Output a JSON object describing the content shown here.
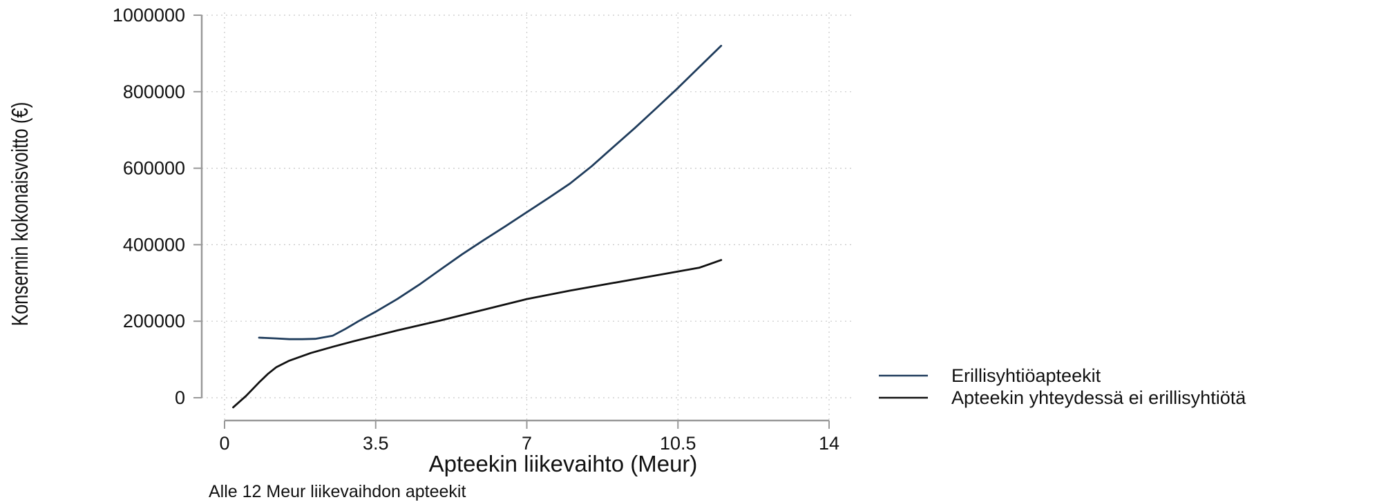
{
  "chart_data": {
    "type": "line",
    "title": "",
    "xlabel": "Apteekin liikevaihto (Meur)",
    "ylabel": "Konsernin kokonaisvoitto (€)",
    "note": "Alle 12 Meur liikevaihdon apteekit",
    "xlim": [
      0,
      14
    ],
    "ylim": [
      0,
      1000000
    ],
    "x_ticks": [
      0,
      3.5,
      7,
      10.5,
      14
    ],
    "x_tick_labels": [
      "0",
      "3.5",
      "7",
      "10.5",
      "14"
    ],
    "y_ticks": [
      0,
      200000,
      400000,
      600000,
      800000,
      1000000
    ],
    "y_tick_labels": [
      "0",
      "200000",
      "400000",
      "600000",
      "800000",
      "1000000"
    ],
    "grid": true,
    "legend_position": "right",
    "series": [
      {
        "name": "Erillisyhtiöapteekit",
        "color": "#1f3c5c",
        "x": [
          0.8,
          1.2,
          1.5,
          1.8,
          2.1,
          2.5,
          2.8,
          3.1,
          3.5,
          4.0,
          4.5,
          5.0,
          5.5,
          6.0,
          6.5,
          7.0,
          7.5,
          8.0,
          8.5,
          9.0,
          9.5,
          10.0,
          10.5,
          11.0,
          11.5
        ],
        "y": [
          157000,
          155000,
          153000,
          153000,
          154000,
          162000,
          180000,
          200000,
          225000,
          258000,
          295000,
          335000,
          375000,
          412000,
          448000,
          485000,
          522000,
          560000,
          605000,
          655000,
          705000,
          757000,
          810000,
          865000,
          920000
        ]
      },
      {
        "name": "Apteekin yhteydessä ei erillisyhtiötä",
        "color": "#111111",
        "x": [
          0.2,
          0.5,
          0.8,
          1.0,
          1.2,
          1.5,
          2.0,
          2.5,
          3.0,
          3.5,
          4.0,
          5.0,
          6.0,
          7.0,
          8.0,
          9.0,
          10.0,
          11.0,
          11.5
        ],
        "y": [
          -25000,
          5000,
          40000,
          62000,
          80000,
          97000,
          117000,
          133000,
          148000,
          162000,
          176000,
          202000,
          230000,
          258000,
          280000,
          300000,
          320000,
          340000,
          360000
        ]
      }
    ]
  }
}
